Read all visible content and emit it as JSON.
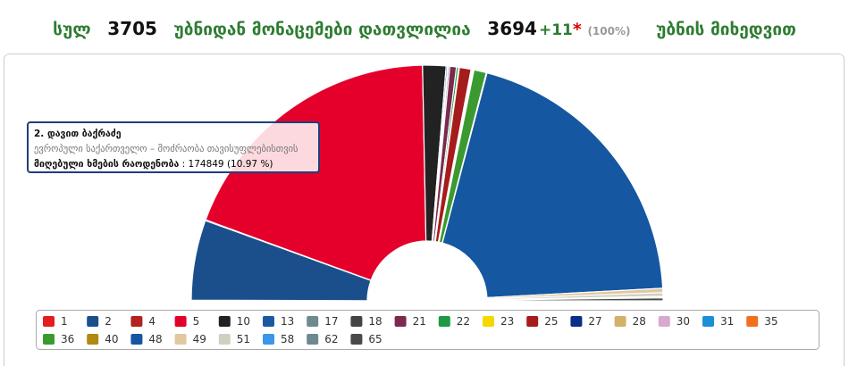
{
  "header": {
    "total_label": "სულ",
    "total": 3705,
    "counted_label": "უბნიდან მონაცემები დათვლილია",
    "counted": 3694,
    "extra": "+11",
    "star": "*",
    "percent": "(100%)",
    "suffix": "უბნის მიხედვით"
  },
  "chart_data": {
    "type": "semi-donut",
    "categories": [
      "1",
      "2",
      "4",
      "5",
      "10",
      "13",
      "17",
      "18",
      "21",
      "22",
      "23",
      "25",
      "27",
      "28",
      "30",
      "31",
      "35",
      "36",
      "40",
      "48",
      "49",
      "51",
      "58",
      "62",
      "65"
    ],
    "values": [
      0.1,
      10.97,
      0.1,
      38.2,
      3.2,
      0.2,
      0.1,
      0.2,
      0.9,
      0.3,
      0.1,
      1.6,
      0.1,
      0.1,
      0.05,
      0.05,
      0.1,
      1.7,
      0.1,
      40.13,
      0.6,
      0.5,
      0.1,
      0.1,
      0.4
    ],
    "colors": [
      "#e41e1e",
      "#1b4f8c",
      "#b22222",
      "#e4002b",
      "#222222",
      "#1c5aa0",
      "#6e8a8e",
      "#444444",
      "#7b2a4e",
      "#1e9a46",
      "#f5d800",
      "#a61c1c",
      "#0a2f86",
      "#d4b06a",
      "#d8a8d0",
      "#1b8fd8",
      "#f07020",
      "#3a9a30",
      "#b08a10",
      "#1557a0",
      "#e0c8a0",
      "#d0d0c0",
      "#3a96e8",
      "#6e8890",
      "#4a4a4a"
    ],
    "tooltip": {
      "title": "2. დავით ბაქრაძე",
      "party": "ევროპული საქართველო – მოძრაობა თავისუფლებისთვის",
      "label": "მიღებული ხმების რაოდენობა",
      "value": ": 174849 (10.97 %)"
    }
  }
}
